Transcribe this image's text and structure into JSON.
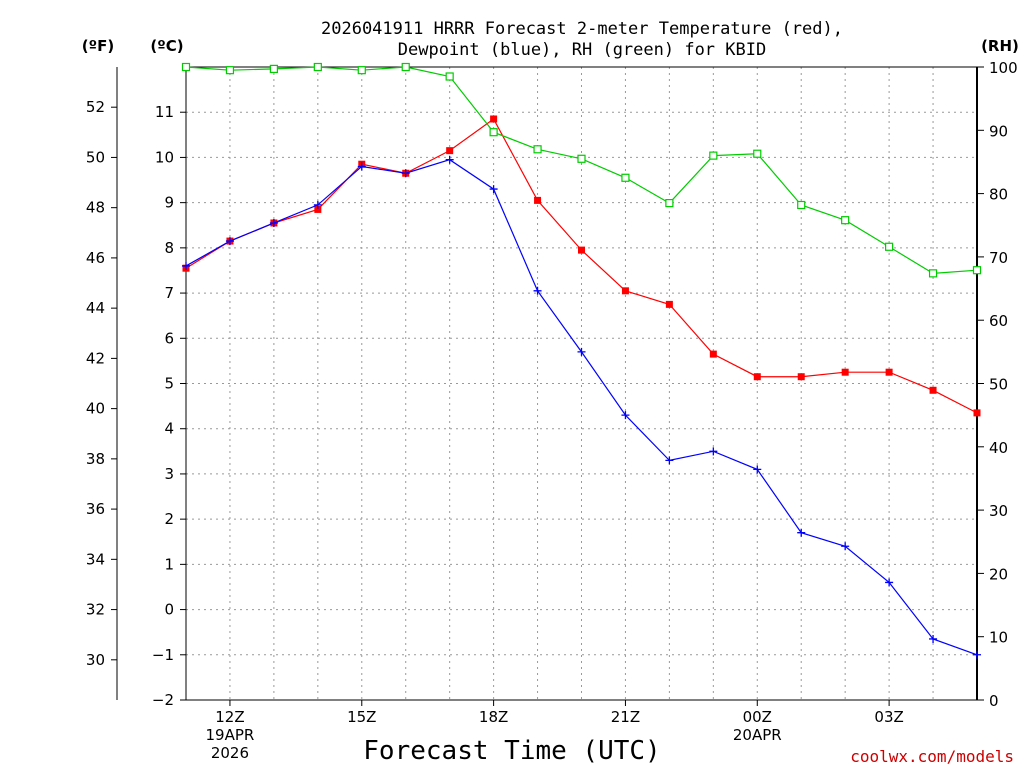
{
  "chart_data": {
    "type": "line",
    "title_lines": [
      "2026041911 HRRR Forecast 2-meter Temperature (red),",
      "Dewpoint (blue), RH (green) for KBID"
    ],
    "unit_labels": {
      "fahrenheit": "(ºF)",
      "celsius": "(ºC)",
      "rh": "(RH)"
    },
    "xlabel": "Forecast Time (UTC)",
    "credit": "coolwx.com/models",
    "x_hours": [
      11,
      12,
      13,
      14,
      15,
      16,
      17,
      18,
      19,
      20,
      21,
      22,
      23,
      24,
      25,
      26,
      27,
      28,
      29
    ],
    "xlim": [
      11,
      29
    ],
    "x_ticks": [
      {
        "hour": 12,
        "lines": [
          "12Z",
          "19APR",
          "2026"
        ]
      },
      {
        "hour": 15,
        "lines": [
          "15Z"
        ]
      },
      {
        "hour": 18,
        "lines": [
          "18Z"
        ]
      },
      {
        "hour": 21,
        "lines": [
          "21Z"
        ]
      },
      {
        "hour": 24,
        "lines": [
          "00Z",
          "20APR"
        ]
      },
      {
        "hour": 27,
        "lines": [
          "03Z"
        ]
      }
    ],
    "ylim_c": [
      -2,
      12
    ],
    "ylim_f": [
      28.4,
      53.6
    ],
    "ylim_rh": [
      0,
      100
    ],
    "y_ticks_c": [
      "-2",
      "-1",
      "0",
      "1",
      "2",
      "3",
      "4",
      "5",
      "6",
      "7",
      "8",
      "9",
      "10",
      "11"
    ],
    "y_ticks_f": [
      "30",
      "32",
      "34",
      "36",
      "38",
      "40",
      "42",
      "44",
      "46",
      "48",
      "50",
      "52"
    ],
    "y_ticks_rh": [
      "0",
      "10",
      "20",
      "30",
      "40",
      "50",
      "60",
      "70",
      "80",
      "90",
      "100"
    ],
    "colors": {
      "temperature": "#ff0000",
      "dewpoint": "#0000ff",
      "rh": "#00cc00",
      "grid": "#999999",
      "credit": "#cc0000"
    },
    "series": [
      {
        "name": "Temperature",
        "axis": "c",
        "marker": "filled-square",
        "values": [
          7.55,
          8.15,
          8.55,
          8.85,
          9.85,
          9.65,
          10.15,
          10.85,
          9.05,
          7.95,
          7.05,
          6.75,
          5.65,
          5.15,
          5.15,
          5.25,
          5.25,
          4.85,
          4.35
        ]
      },
      {
        "name": "Dewpoint",
        "axis": "c",
        "marker": "plus",
        "values": [
          7.6,
          8.15,
          8.55,
          8.95,
          9.8,
          9.65,
          9.95,
          9.3,
          7.05,
          5.7,
          4.3,
          3.3,
          3.5,
          3.1,
          1.7,
          1.4,
          0.6,
          -0.65,
          -1.0
        ]
      },
      {
        "name": "RH",
        "axis": "rh",
        "marker": "open-square",
        "values": [
          100,
          99.5,
          99.7,
          100,
          99.5,
          100,
          98.5,
          89.7,
          87.0,
          85.5,
          82.5,
          78.5,
          86.0,
          86.3,
          78.2,
          75.8,
          71.6,
          67.4,
          67.9
        ]
      }
    ]
  }
}
